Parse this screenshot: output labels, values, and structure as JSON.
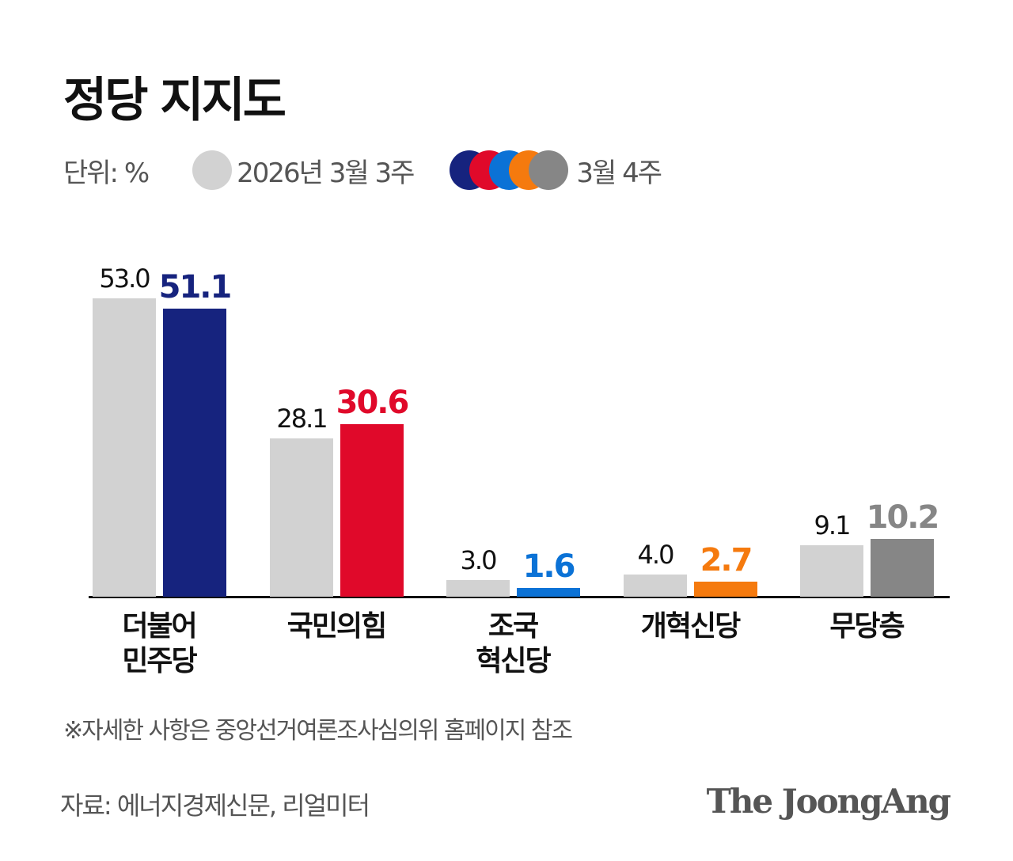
{
  "title": "정당 지지도",
  "legend": {
    "unit": "단위: %",
    "prev_label": "2026년 3월 3주",
    "prev_color": "#d2d2d2",
    "cur_label": "3월 4주",
    "cur_colors": [
      "#16237e",
      "#e0092a",
      "#0b72d6",
      "#f57a0e",
      "#868686"
    ]
  },
  "note": "※자세한 사항은 중앙선거여론조사심의위 홈페이지 참조",
  "source": "자료: 에너지경제신문, 리얼미터",
  "logo": "The JoongAng",
  "chart_data": {
    "type": "bar",
    "title": "정당 지지도",
    "xlabel": "",
    "ylabel": "단위: %",
    "categories": [
      "더불어\n민주당",
      "국민의힘",
      "조국\n혁신당",
      "개혁신당",
      "무당층"
    ],
    "series": [
      {
        "name": "2026년 3월 3주",
        "values": [
          53.0,
          28.1,
          3.0,
          4.0,
          9.1
        ],
        "color": "#d2d2d2"
      },
      {
        "name": "3월 4주",
        "values": [
          51.1,
          30.6,
          1.6,
          2.7,
          10.2
        ],
        "colors": [
          "#16237e",
          "#e0092a",
          "#0b72d6",
          "#f57a0e",
          "#868686"
        ]
      }
    ],
    "value_labels": {
      "prev": [
        "53.0",
        "28.1",
        "3.0",
        "4.0",
        "9.1"
      ],
      "cur": [
        "51.1",
        "30.6",
        "1.6",
        "2.7",
        "10.2"
      ]
    },
    "grid": false,
    "legend_position": "top",
    "ylim": [
      0,
      55
    ]
  }
}
